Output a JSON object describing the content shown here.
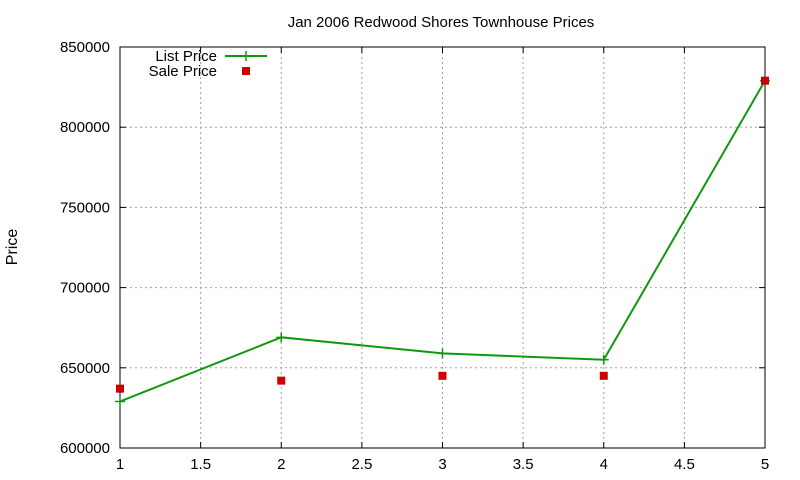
{
  "chart_data": {
    "type": "line",
    "title": "Jan 2006 Redwood Shores Townhouse Prices",
    "xlabel": "",
    "ylabel": "Price",
    "xlim": [
      1,
      5
    ],
    "ylim": [
      600000,
      850000
    ],
    "x_ticks": [
      "1",
      "1.5",
      "2",
      "2.5",
      "3",
      "3.5",
      "4",
      "4.5",
      "5"
    ],
    "y_ticks": [
      "600000",
      "650000",
      "700000",
      "750000",
      "800000",
      "850000"
    ],
    "grid": true,
    "legend_position": "top-left",
    "series": [
      {
        "name": "List Price",
        "style": "line+cross",
        "color": "#109910",
        "x": [
          1,
          2,
          3,
          4,
          5
        ],
        "y": [
          629000,
          669000,
          659000,
          655000,
          829000
        ]
      },
      {
        "name": "Sale Price",
        "style": "square",
        "color": "#cc0000",
        "x": [
          1,
          2,
          3,
          4,
          5
        ],
        "y": [
          637000,
          642000,
          645000,
          645000,
          829000
        ]
      }
    ]
  }
}
